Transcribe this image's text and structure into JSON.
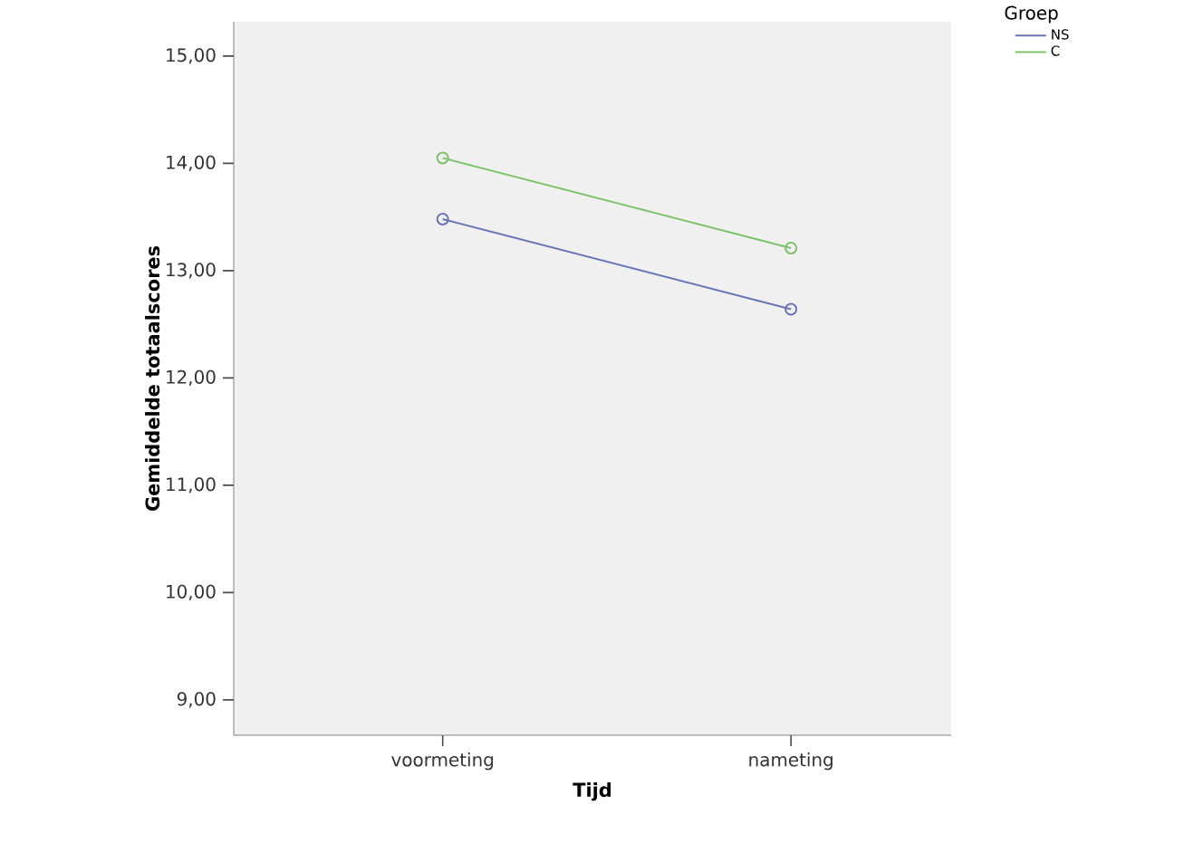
{
  "chart_data": {
    "type": "line",
    "xlabel": "Tijd",
    "ylabel": "Gemiddelde totaalscores",
    "legend_title": "Groep",
    "categories": [
      "voormeting",
      "nameting"
    ],
    "series": [
      {
        "name": "NS",
        "color": "#6a75b8",
        "values": [
          13.48,
          12.64
        ]
      },
      {
        "name": "C",
        "color": "#7cc36a",
        "values": [
          14.05,
          13.21
        ]
      }
    ],
    "ylim": [
      8.67,
      15.32
    ],
    "yticks": [
      {
        "value": 9,
        "label": "9,00"
      },
      {
        "value": 10,
        "label": "10,00"
      },
      {
        "value": 11,
        "label": "11,00"
      },
      {
        "value": 12,
        "label": "12,00"
      },
      {
        "value": 13,
        "label": "13,00"
      },
      {
        "value": 14,
        "label": "14,00"
      },
      {
        "value": 15,
        "label": "15,00"
      }
    ],
    "legend": "right",
    "marker": "circle",
    "line_style": "solid",
    "grid": false
  }
}
